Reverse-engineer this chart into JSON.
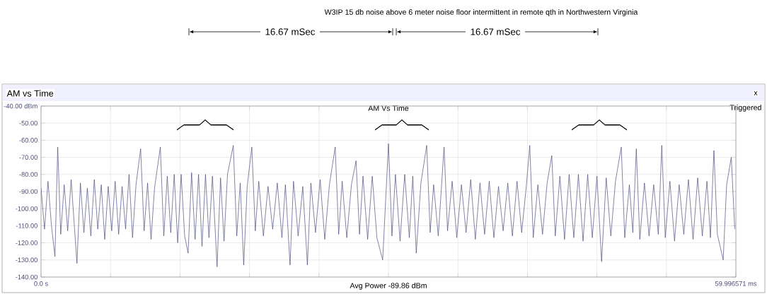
{
  "chart_data": {
    "type": "line",
    "title": "W3IP 15 db noise above 6 meter noise floor intermittent in remote qth in Northwestern Virginia",
    "annotations": [
      "AM vs Time",
      "AM Vs Time",
      "Triggered",
      "Avg Power -89.86 dBm",
      "16.67 mSec",
      "16.67 mSec",
      "x"
    ],
    "xlim": [
      0,
      59.996571
    ],
    "ylim": [
      -140,
      -40
    ],
    "xticks": [
      {
        "value": 0,
        "label": "0.0 s"
      },
      {
        "value": 6,
        "label": null
      },
      {
        "value": 12,
        "label": null
      },
      {
        "value": 18,
        "label": null
      },
      {
        "value": 24,
        "label": null
      },
      {
        "value": 30,
        "label": null
      },
      {
        "value": 36,
        "label": null
      },
      {
        "value": 42,
        "label": null
      },
      {
        "value": 48,
        "label": null
      },
      {
        "value": 54,
        "label": null
      },
      {
        "value": 59.996571,
        "label": "59.996571 ms"
      }
    ],
    "yticks": [
      {
        "value": -40,
        "label": "-40.00 dBm"
      },
      {
        "value": -50,
        "label": "-50.00"
      },
      {
        "value": -60,
        "label": "-60.00"
      },
      {
        "value": -70,
        "label": "-70.00"
      },
      {
        "value": -80,
        "label": "-80.00"
      },
      {
        "value": -90,
        "label": "-90.00"
      },
      {
        "value": -100,
        "label": "-100.00"
      },
      {
        "value": -110,
        "label": "-110.00"
      },
      {
        "value": -120,
        "label": "-120.00"
      },
      {
        "value": -130,
        "label": "-130.00"
      },
      {
        "value": -140,
        "label": "-140.00"
      }
    ],
    "grid": true,
    "marker": "none",
    "line_style": "solid",
    "series": [
      {
        "color": "#45457a",
        "x": [
          0.0,
          0.3,
          0.6,
          0.9,
          1.2,
          1.44,
          1.7,
          2.0,
          2.3,
          2.6,
          3.1,
          3.4,
          3.7,
          4.0,
          4.3,
          4.6,
          4.9,
          5.2,
          5.5,
          5.8,
          6.1,
          6.4,
          6.7,
          7.0,
          7.3,
          7.6,
          7.9,
          8.2,
          8.6,
          8.9,
          9.2,
          9.5,
          9.8,
          10.3,
          10.6,
          10.9,
          11.2,
          11.5,
          11.8,
          12.1,
          12.4,
          12.7,
          13.0,
          13.3,
          13.6,
          13.9,
          14.2,
          14.5,
          14.8,
          15.2,
          15.5,
          15.8,
          16.1,
          16.6,
          16.9,
          17.2,
          17.5,
          17.8,
          18.2,
          18.5,
          18.8,
          19.2,
          19.6,
          20.0,
          20.4,
          20.8,
          21.1,
          21.5,
          21.8,
          22.2,
          22.6,
          23.0,
          23.3,
          23.7,
          24.1,
          24.5,
          24.9,
          25.4,
          25.7,
          26.0,
          26.4,
          26.8,
          27.2,
          27.5,
          27.8,
          28.2,
          28.6,
          29.0,
          29.5,
          30.0,
          30.3,
          30.6,
          31.0,
          31.4,
          31.8,
          32.1,
          32.4,
          32.8,
          33.3,
          33.6,
          33.9,
          34.3,
          34.8,
          35.1,
          35.5,
          35.9,
          36.3,
          36.7,
          37.1,
          37.5,
          37.9,
          38.3,
          38.7,
          39.1,
          39.5,
          39.9,
          40.3,
          40.7,
          41.1,
          41.5,
          41.9,
          42.2,
          42.5,
          42.9,
          43.3,
          43.7,
          44.1,
          44.4,
          44.8,
          45.2,
          45.6,
          46.0,
          46.4,
          46.8,
          47.2,
          47.6,
          48.0,
          48.4,
          48.8,
          49.2,
          49.6,
          50.1,
          50.4,
          50.8,
          51.1,
          51.4,
          51.7,
          52.1,
          52.5,
          52.9,
          53.3,
          53.6,
          53.9,
          54.3,
          54.7,
          55.1,
          55.5,
          55.9,
          56.3,
          56.7,
          57.1,
          57.5,
          57.8,
          58.1,
          58.4,
          58.9,
          59.2,
          59.6,
          59.9
        ],
        "values": [
          -88,
          -112,
          -84,
          -110,
          -128,
          -64,
          -115,
          -86,
          -113,
          -83,
          -132,
          -85,
          -114,
          -88,
          -116,
          -83,
          -112,
          -86,
          -118,
          -87,
          -113,
          -84,
          -115,
          -87,
          -112,
          -80,
          -117,
          -86,
          -65,
          -113,
          -85,
          -118,
          -88,
          -64,
          -116,
          -81,
          -114,
          -80,
          -120,
          -80,
          -116,
          -126,
          -79,
          -118,
          -80,
          -122,
          -80,
          -117,
          -81,
          -134,
          -82,
          -119,
          -80,
          -63,
          -116,
          -85,
          -133,
          -87,
          -64,
          -113,
          -84,
          -116,
          -87,
          -112,
          -85,
          -117,
          -86,
          -133,
          -84,
          -116,
          -87,
          -133,
          -85,
          -114,
          -83,
          -118,
          -86,
          -64,
          -115,
          -84,
          -117,
          -86,
          -72,
          -115,
          -81,
          -118,
          -81,
          -117,
          -130,
          -62,
          -116,
          -80,
          -119,
          -80,
          -117,
          -81,
          -126,
          -85,
          -63,
          -114,
          -86,
          -116,
          -64,
          -113,
          -84,
          -117,
          -86,
          -114,
          -83,
          -118,
          -85,
          -115,
          -84,
          -117,
          -87,
          -113,
          -85,
          -116,
          -84,
          -114,
          -87,
          -63,
          -117,
          -86,
          -115,
          -85,
          -69,
          -116,
          -81,
          -118,
          -80,
          -117,
          -80,
          -119,
          -80,
          -117,
          -81,
          -131,
          -82,
          -116,
          -84,
          -64,
          -117,
          -86,
          -114,
          -65,
          -118,
          -85,
          -116,
          -86,
          -115,
          -63,
          -117,
          -84,
          -119,
          -86,
          -115,
          -83,
          -118,
          -82,
          -116,
          -84,
          -117,
          -66,
          -115,
          -130,
          -86,
          -70,
          -112
        ]
      }
    ]
  }
}
